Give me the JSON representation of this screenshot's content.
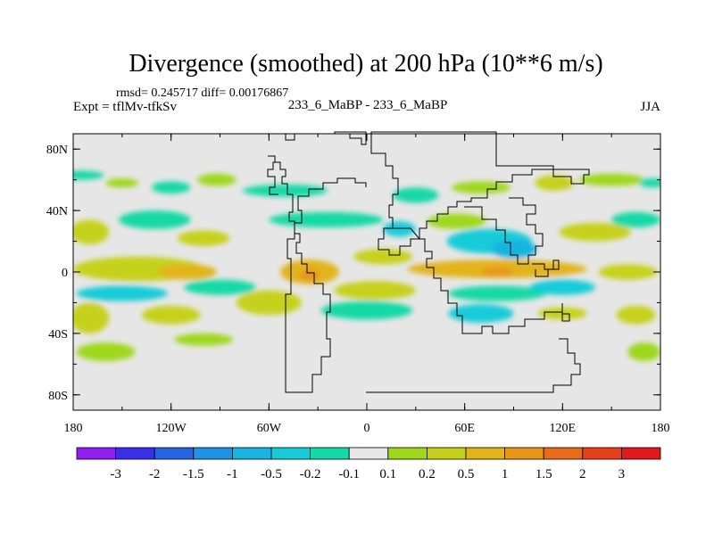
{
  "chart_data": {
    "type": "heatmap",
    "title": "Divergence (smoothed) at 200 hPa (10**6 m/s)",
    "stats_line": "rmsd= 0.245717 diff= 0.00176867",
    "left_label": "Expt = tflMv-tfkSv",
    "center_label": "233_6_MaBP - 233_6_MaBP",
    "right_label": "JJA",
    "x_ticks": [
      {
        "value": -180,
        "label": "180"
      },
      {
        "value": -120,
        "label": "120W"
      },
      {
        "value": -60,
        "label": "60W"
      },
      {
        "value": 0,
        "label": "0"
      },
      {
        "value": 60,
        "label": "60E"
      },
      {
        "value": 120,
        "label": "120E"
      },
      {
        "value": 180,
        "label": "180"
      }
    ],
    "y_ticks": [
      {
        "value": 80,
        "label": "80N"
      },
      {
        "value": 40,
        "label": "40N"
      },
      {
        "value": 0,
        "label": "0"
      },
      {
        "value": -40,
        "label": "40S"
      },
      {
        "value": -80,
        "label": "80S"
      }
    ],
    "xlim": [
      -180,
      180
    ],
    "ylim": [
      -90,
      90
    ],
    "colorbar": {
      "colors": [
        "#8f1ff0",
        "#3a2fe8",
        "#2566e0",
        "#1e92e4",
        "#19b4e0",
        "#17ccd8",
        "#15d9a6",
        "#e8e8e8",
        "#9ed81a",
        "#c6d11b",
        "#e2b41a",
        "#e8961a",
        "#ea6a18",
        "#e8401b",
        "#e01a1a"
      ],
      "labels": [
        "-3",
        "-2",
        "-1.5",
        "-1",
        "-0.5",
        "-0.2",
        "-0.1",
        "0.1",
        "0.2",
        "0.5",
        "1",
        "1.5",
        "2",
        "3"
      ]
    },
    "field_blobs": [
      {
        "lon": -175,
        "lat": 63,
        "rx": 14,
        "ry": 3,
        "level": -0.15
      },
      {
        "lon": -150,
        "lat": 58,
        "rx": 10,
        "ry": 3,
        "level": 0.15
      },
      {
        "lon": -120,
        "lat": 55,
        "rx": 12,
        "ry": 4,
        "level": -0.15
      },
      {
        "lon": -92,
        "lat": 60,
        "rx": 12,
        "ry": 4,
        "level": 0.15
      },
      {
        "lon": -50,
        "lat": 53,
        "rx": 26,
        "ry": 4,
        "level": -0.15
      },
      {
        "lon": 30,
        "lat": 50,
        "rx": 14,
        "ry": 5,
        "level": -0.15
      },
      {
        "lon": 70,
        "lat": 55,
        "rx": 18,
        "ry": 4,
        "level": 0.15
      },
      {
        "lon": 115,
        "lat": 58,
        "rx": 12,
        "ry": 5,
        "level": 0.3
      },
      {
        "lon": 150,
        "lat": 60,
        "rx": 20,
        "ry": 4,
        "level": 0.15
      },
      {
        "lon": 175,
        "lat": 58,
        "rx": 8,
        "ry": 3,
        "level": -0.15
      },
      {
        "lon": -170,
        "lat": 26,
        "rx": 12,
        "ry": 8,
        "level": 0.3
      },
      {
        "lon": -130,
        "lat": 34,
        "rx": 22,
        "ry": 6,
        "level": -0.15
      },
      {
        "lon": -100,
        "lat": 22,
        "rx": 16,
        "ry": 5,
        "level": 0.3
      },
      {
        "lon": -25,
        "lat": 34,
        "rx": 35,
        "ry": 5,
        "level": -0.15
      },
      {
        "lon": 20,
        "lat": 28,
        "rx": 10,
        "ry": 5,
        "level": -0.3
      },
      {
        "lon": 55,
        "lat": 33,
        "rx": 18,
        "ry": 5,
        "level": 0.15
      },
      {
        "lon": 75,
        "lat": 20,
        "rx": 26,
        "ry": 8,
        "level": -0.3
      },
      {
        "lon": 90,
        "lat": 15,
        "rx": 14,
        "ry": 6,
        "level": -0.7
      },
      {
        "lon": 140,
        "lat": 26,
        "rx": 22,
        "ry": 6,
        "level": 0.3
      },
      {
        "lon": 165,
        "lat": 34,
        "rx": 15,
        "ry": 5,
        "level": -0.15
      },
      {
        "lon": -140,
        "lat": 2,
        "rx": 40,
        "ry": 8,
        "level": 0.3
      },
      {
        "lon": -110,
        "lat": 0,
        "rx": 18,
        "ry": 5,
        "level": 0.7
      },
      {
        "lon": -35,
        "lat": 0,
        "rx": 18,
        "ry": 8,
        "level": 0.7
      },
      {
        "lon": -35,
        "lat": -2,
        "rx": 6,
        "ry": 4,
        "level": 1.2
      },
      {
        "lon": 10,
        "lat": 10,
        "rx": 18,
        "ry": 5,
        "level": 0.3
      },
      {
        "lon": 80,
        "lat": 2,
        "rx": 55,
        "ry": 6,
        "level": 0.7
      },
      {
        "lon": 80,
        "lat": 0,
        "rx": 10,
        "ry": 3,
        "level": 1.2
      },
      {
        "lon": 160,
        "lat": 0,
        "rx": 18,
        "ry": 5,
        "level": 0.3
      },
      {
        "lon": -150,
        "lat": -14,
        "rx": 28,
        "ry": 5,
        "level": -0.3
      },
      {
        "lon": -90,
        "lat": -10,
        "rx": 22,
        "ry": 5,
        "level": -0.15
      },
      {
        "lon": 5,
        "lat": -12,
        "rx": 25,
        "ry": 6,
        "level": 0.3
      },
      {
        "lon": 80,
        "lat": -14,
        "rx": 30,
        "ry": 5,
        "level": -0.15
      },
      {
        "lon": 120,
        "lat": -10,
        "rx": 20,
        "ry": 5,
        "level": -0.3
      },
      {
        "lon": -170,
        "lat": -30,
        "rx": 12,
        "ry": 10,
        "level": 0.3
      },
      {
        "lon": -120,
        "lat": -28,
        "rx": 18,
        "ry": 6,
        "level": 0.3
      },
      {
        "lon": -60,
        "lat": -20,
        "rx": 20,
        "ry": 8,
        "level": 0.3
      },
      {
        "lon": 0,
        "lat": -25,
        "rx": 28,
        "ry": 6,
        "level": -0.15
      },
      {
        "lon": 70,
        "lat": -27,
        "rx": 20,
        "ry": 6,
        "level": -0.3
      },
      {
        "lon": 120,
        "lat": -27,
        "rx": 15,
        "ry": 4,
        "level": 0.3
      },
      {
        "lon": 165,
        "lat": -28,
        "rx": 12,
        "ry": 6,
        "level": 0.3
      },
      {
        "lon": -160,
        "lat": -52,
        "rx": 18,
        "ry": 6,
        "level": 0.15
      },
      {
        "lon": -100,
        "lat": -44,
        "rx": 18,
        "ry": 4,
        "level": 0.15
      },
      {
        "lon": 170,
        "lat": -52,
        "rx": 10,
        "ry": 6,
        "level": 0.15
      }
    ]
  }
}
